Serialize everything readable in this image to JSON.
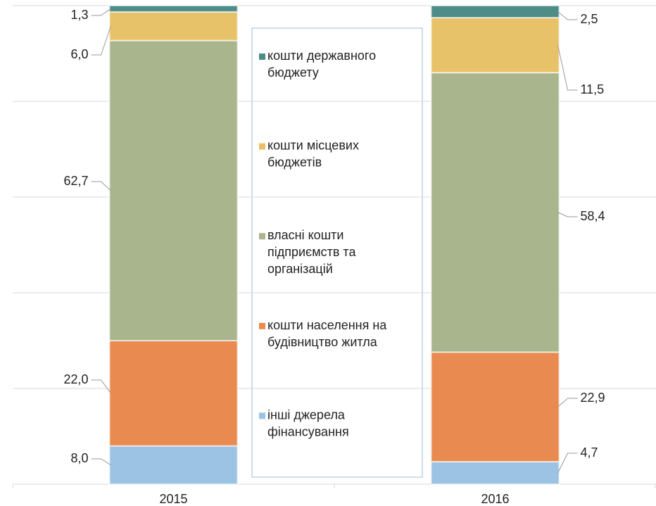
{
  "chart_data": {
    "type": "stacked_bar",
    "categories": [
      "2015",
      "2016"
    ],
    "series": [
      {
        "name": "інші джерела фінансування",
        "color": "#9cc3e4",
        "values": [
          8.0,
          4.7
        ],
        "value_labels": [
          "8,0",
          "4,7"
        ]
      },
      {
        "name": "кошти населення на будівництво житла",
        "color": "#e98b50",
        "values": [
          22.0,
          22.9
        ],
        "value_labels": [
          "22,0",
          "22,9"
        ]
      },
      {
        "name": "власні кошти підприємств та організацій",
        "color": "#a9b58c",
        "values": [
          62.7,
          58.4
        ],
        "value_labels": [
          "62,7",
          "58,4"
        ]
      },
      {
        "name": "кошти місцевих бюджетів",
        "color": "#e8c268",
        "values": [
          6.0,
          11.5
        ],
        "value_labels": [
          "6,0",
          "11,5"
        ]
      },
      {
        "name": "кошти державного бюджету",
        "color": "#4e8c88",
        "values": [
          1.3,
          2.5
        ],
        "value_labels": [
          "1,3",
          "2,5"
        ]
      }
    ],
    "ylim": [
      0,
      100
    ],
    "yticks": [
      0,
      20,
      40,
      60,
      80,
      100
    ],
    "grid": true
  }
}
